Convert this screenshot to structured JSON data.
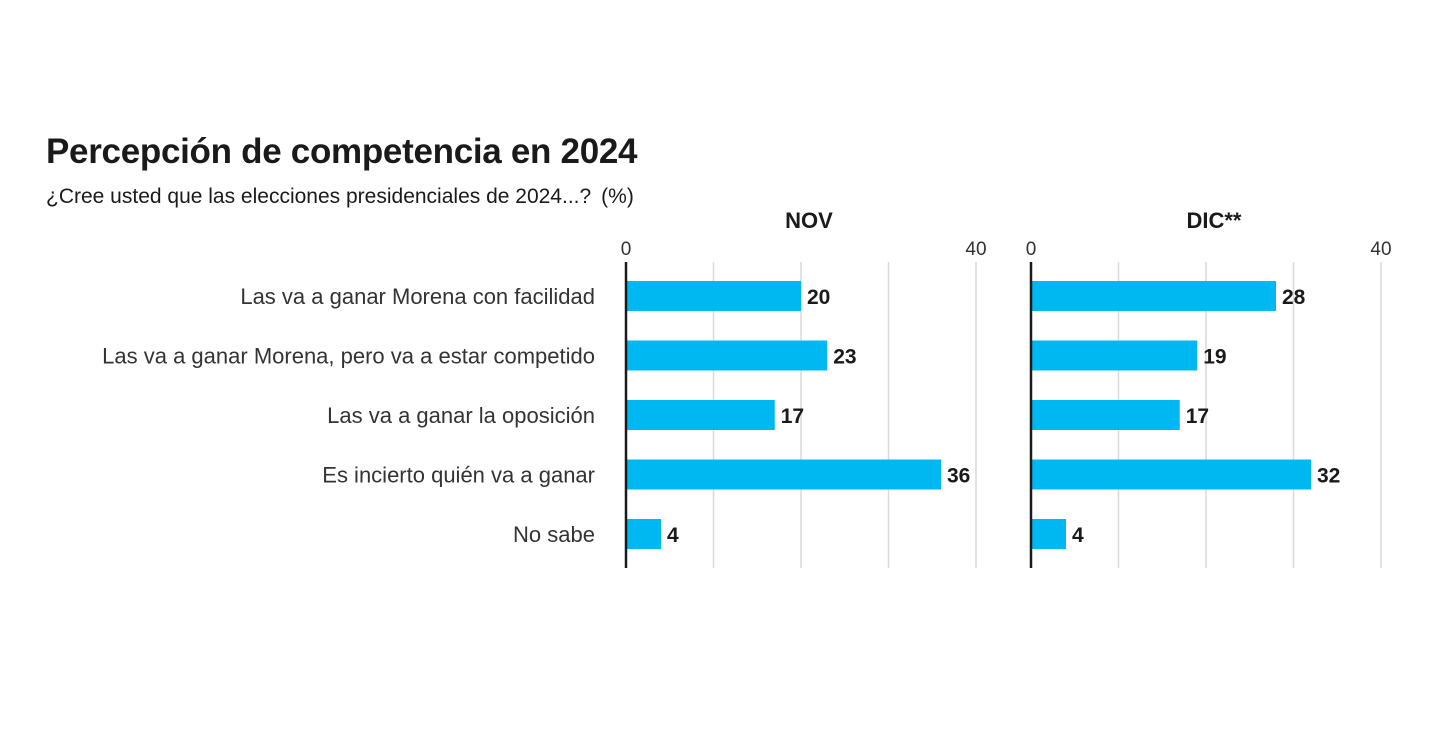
{
  "title": "Percepción de competencia en 2024",
  "subtitle": "¿Cree usted que las elecciones presidenciales de 2024...?",
  "unit": "(%)",
  "colors": {
    "bar": "#00b8f1",
    "grid": "#d9d9d9",
    "axis": "#1a1a1a"
  },
  "chart_data": {
    "type": "bar",
    "orientation": "horizontal",
    "categories": [
      "Las va a ganar Morena con facilidad",
      "Las va a ganar Morena, pero va a estar competido",
      "Las va a ganar la oposición",
      "Es incierto quién va a ganar",
      "No sabe"
    ],
    "xlim": [
      0,
      40
    ],
    "xticks_labeled": [
      0,
      40
    ],
    "gridlines": [
      10,
      20,
      30,
      40
    ],
    "grid": true,
    "panels": [
      {
        "name": "NOV",
        "values": [
          20,
          23,
          17,
          36,
          4
        ]
      },
      {
        "name": "DIC**",
        "values": [
          28,
          19,
          17,
          32,
          4
        ]
      }
    ]
  }
}
